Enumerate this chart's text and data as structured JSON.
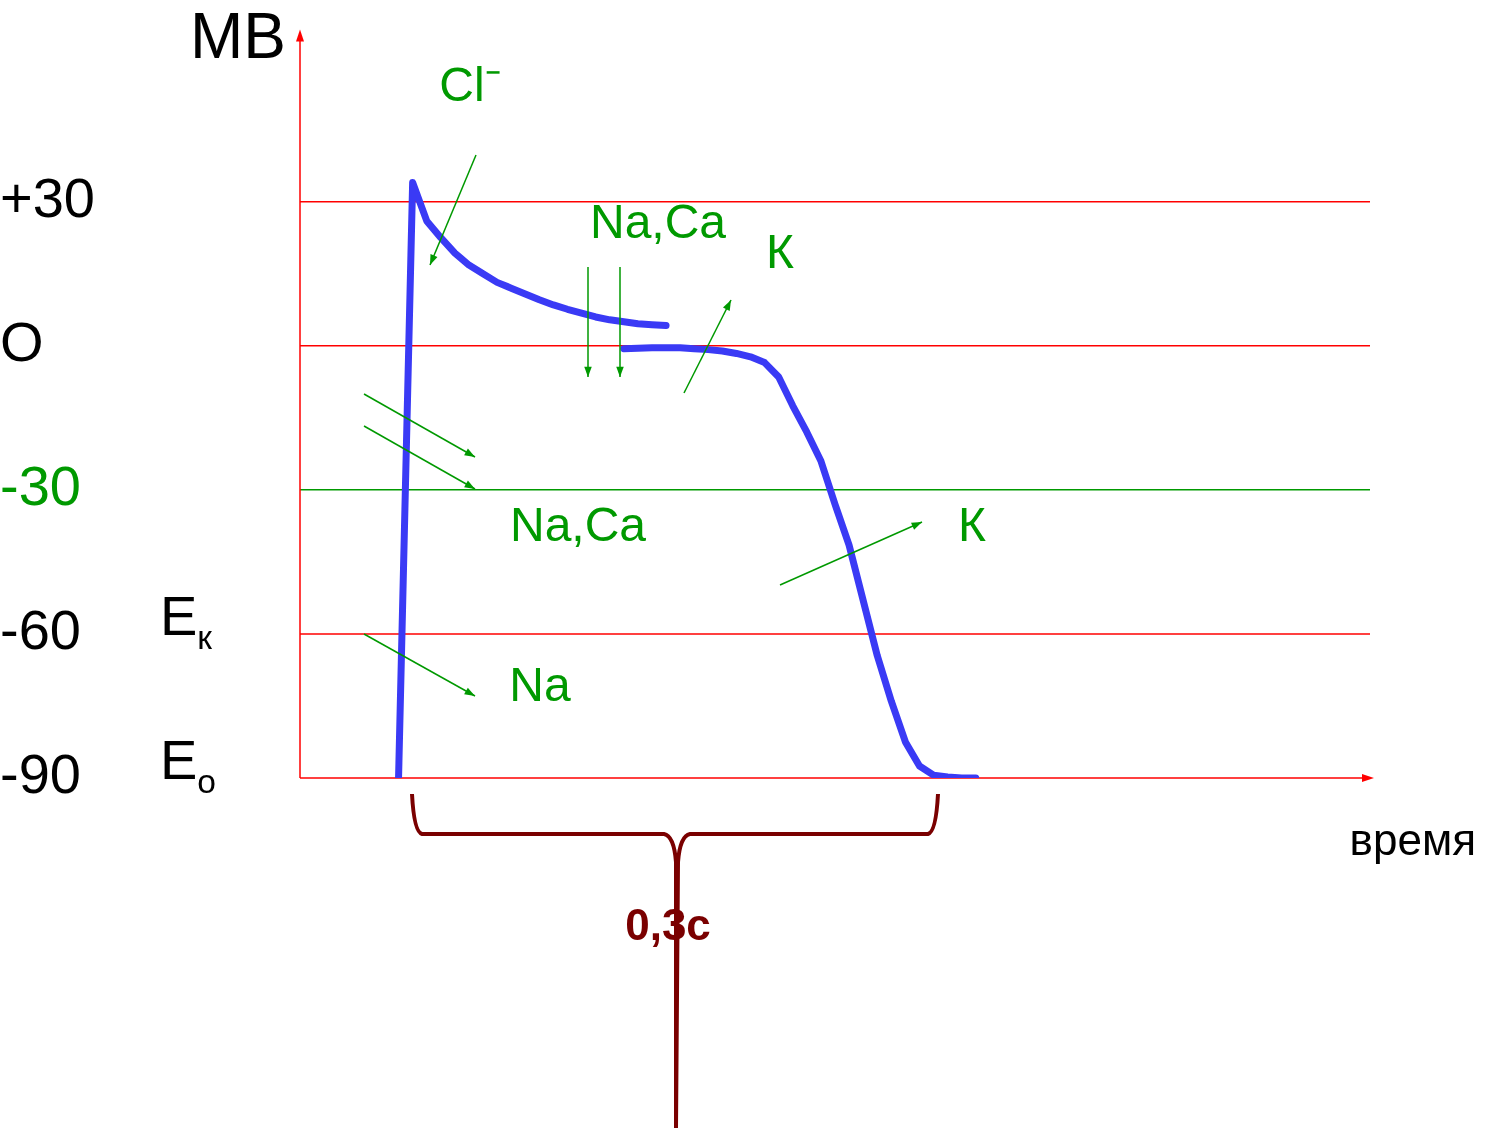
{
  "chart_data": {
    "type": "line",
    "ylabel": "МВ",
    "xlabel": "время",
    "marker": "none",
    "tick_labels": "y",
    "categories": [
      null,
      null,
      null,
      null,
      null,
      null,
      null,
      null,
      null,
      null,
      null,
      null,
      null,
      null,
      null,
      null,
      null,
      null,
      null,
      null,
      null,
      null,
      null,
      null,
      null,
      null,
      null,
      null,
      null,
      null,
      null,
      null,
      null,
      null,
      null,
      null,
      null,
      null,
      null,
      null,
      null,
      null,
      null,
      null,
      null,
      null,
      null,
      null,
      null,
      null,
      null,
      null,
      null,
      null,
      null,
      null,
      null,
      null,
      null,
      null,
      null,
      null,
      null,
      null,
      null,
      null,
      null,
      null,
      null,
      null,
      null,
      null,
      null,
      null,
      null,
      null,
      null
    ],
    "ylim": [
      -90,
      65
    ],
    "yticks": [
      -90,
      -60,
      -30,
      {
        "value": 0,
        "label": "O"
      },
      {
        "value": 30,
        "label": "+30"
      }
    ],
    "series": [
      {
        "color": "#3a3af5",
        "values": [
          null,
          null,
          null,
          null,
          null,
          null,
          null,
          -90,
          34,
          26,
          22.5,
          19.3,
          16.8,
          15,
          13.2,
          12,
          10.8,
          9.6,
          8.5,
          7.6,
          6.8,
          6,
          5.4,
          5,
          4.6,
          4.4,
          4.2,
          null,
          null,
          null,
          null,
          null,
          null,
          null,
          null,
          null,
          null,
          null,
          null,
          null,
          null,
          null,
          null,
          null,
          null,
          null,
          null,
          null,
          null,
          null,
          null,
          null,
          null,
          null,
          null,
          null,
          null,
          null,
          null,
          null,
          null,
          null,
          null,
          null,
          null,
          null,
          null,
          null,
          null,
          null,
          null,
          null,
          null,
          null,
          null,
          null,
          null
        ]
      },
      {
        "color": "#3a3af5",
        "values": [
          null,
          null,
          null,
          null,
          null,
          null,
          null,
          null,
          null,
          null,
          null,
          null,
          null,
          null,
          null,
          null,
          null,
          null,
          null,
          null,
          null,
          null,
          null,
          -0.6,
          -0.5,
          -0.4,
          -0.4,
          -0.4,
          -0.6,
          -0.8,
          -1.1,
          -1.6,
          -2.3,
          -3.5,
          -6.5,
          -12.5,
          -18,
          -24,
          -33,
          -41.5,
          -53,
          -64.5,
          -74,
          -82.5,
          -87.5,
          -89.4,
          -89.8,
          -90,
          -90,
          null,
          null,
          null,
          null,
          null,
          null,
          null,
          null,
          null,
          null,
          null,
          null,
          null,
          null,
          null,
          null,
          null,
          null,
          null,
          null,
          null,
          null,
          null,
          null,
          null,
          null,
          null,
          null
        ]
      }
    ],
    "ref_lines": [
      {
        "axis": "y",
        "value": 30,
        "color": "#ff0000"
      },
      {
        "axis": "y",
        "value": 0,
        "color": "#ff0000"
      },
      {
        "axis": "y",
        "value": -30,
        "color": "#009900"
      },
      {
        "axis": "y",
        "value": -60,
        "color": "#ff0000",
        "label": "E$_{к}$"
      }
    ],
    "annotations": [
      "Cl⁻",
      "Na,Ca",
      "К",
      "Na,Ca",
      "К",
      "Na",
      "0,3с",
      "E$_{о}$"
    ]
  }
}
